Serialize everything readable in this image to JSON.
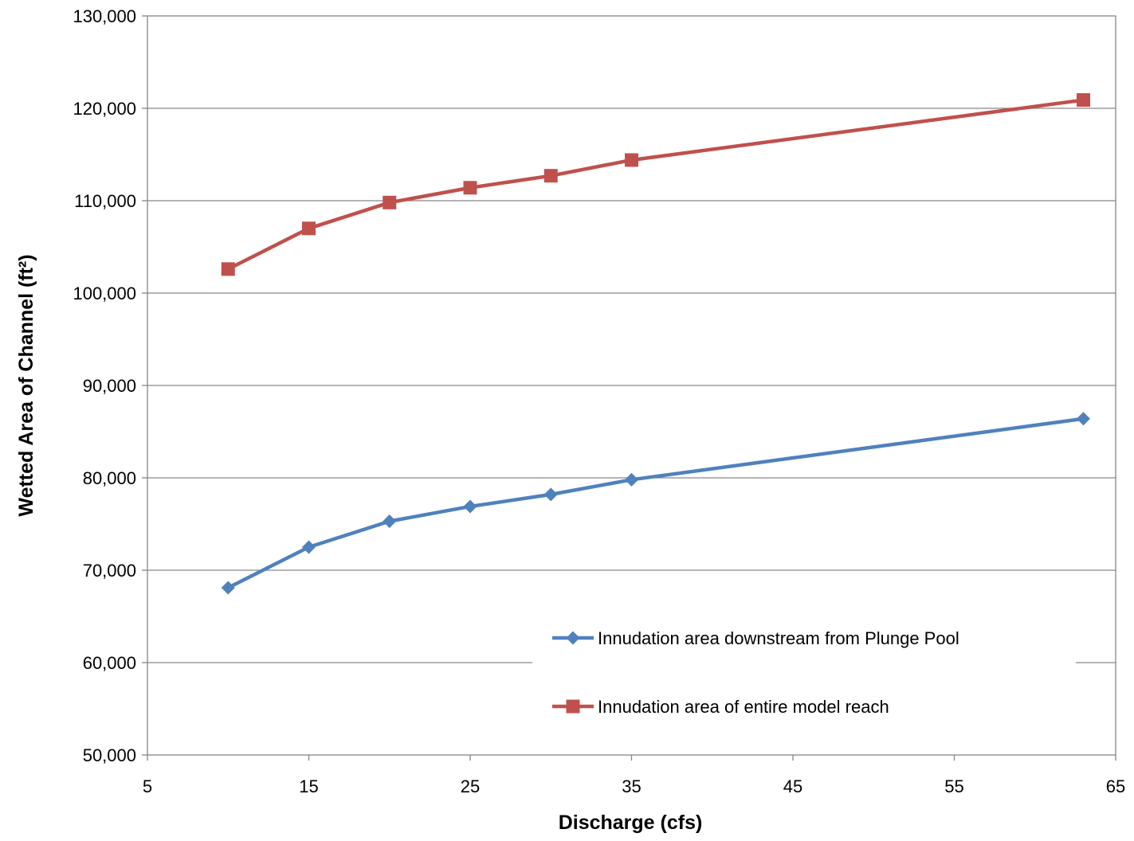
{
  "chart_data": {
    "type": "line",
    "xlabel": "Discharge (cfs)",
    "ylabel": "Wetted Area of Channel (ft²)",
    "xlim": [
      5,
      65
    ],
    "ylim": [
      50000,
      130000
    ],
    "xticks": [
      5,
      15,
      25,
      35,
      45,
      55,
      65
    ],
    "yticks": [
      50000,
      60000,
      70000,
      80000,
      90000,
      100000,
      110000,
      120000,
      130000
    ],
    "xtick_labels": [
      "5",
      "15",
      "25",
      "35",
      "45",
      "55",
      "65"
    ],
    "ytick_labels": [
      "50,000",
      "60,000",
      "70,000",
      "80,000",
      "90,000",
      "100,000",
      "110,000",
      "120,000",
      "130,000"
    ],
    "grid": "horizontal",
    "legend_position": "bottom-right",
    "series": [
      {
        "name": "Innudation area downstream from Plunge Pool",
        "color": "#4F81BD",
        "marker": "diamond",
        "x": [
          10,
          15,
          20,
          25,
          30,
          35,
          63
        ],
        "y": [
          68100,
          72500,
          75300,
          76900,
          78200,
          79800,
          86400
        ]
      },
      {
        "name": "Innudation area of entire model reach",
        "color": "#C0504D",
        "marker": "square",
        "x": [
          10,
          15,
          20,
          25,
          30,
          35,
          63
        ],
        "y": [
          102600,
          107000,
          109800,
          111400,
          112700,
          114400,
          120900
        ]
      }
    ]
  }
}
